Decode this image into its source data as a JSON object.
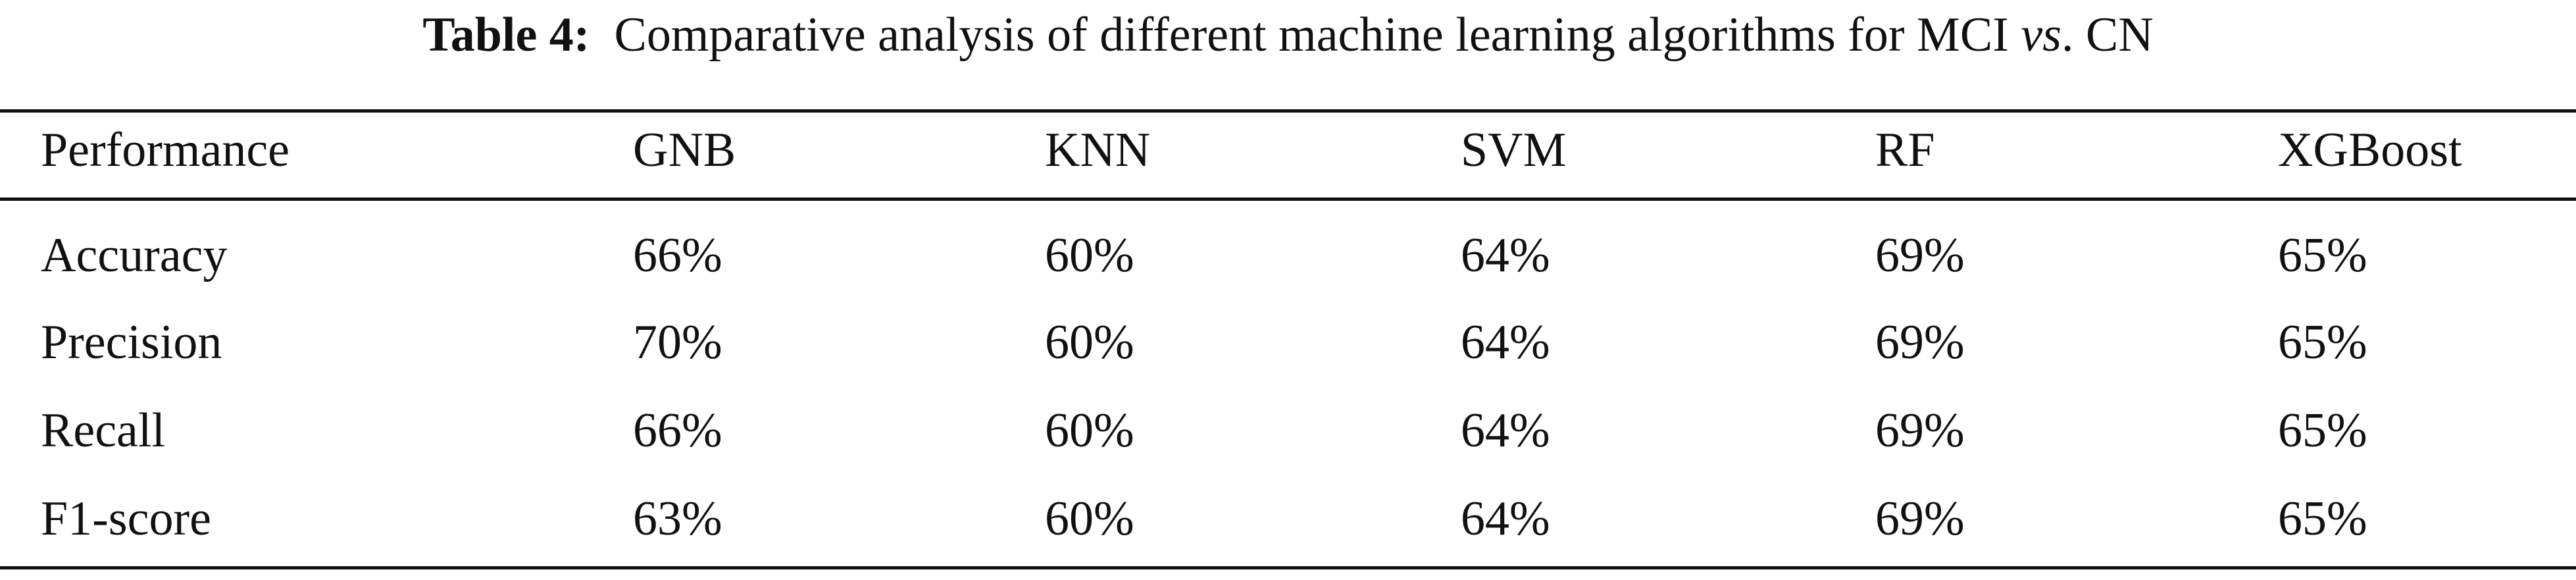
{
  "caption": {
    "label": "Table 4:",
    "text": "Comparative analysis of different machine learning algorithms for MCI",
    "italic": "vs",
    "text_after": ". CN"
  },
  "table": {
    "header": [
      "Performance",
      "GNB",
      "KNN",
      "SVM",
      "RF",
      "XGBoost"
    ],
    "rows": [
      [
        "Accuracy",
        "66%",
        "60%",
        "64%",
        "69%",
        "65%"
      ],
      [
        "Precision",
        "70%",
        "60%",
        "64%",
        "69%",
        "65%"
      ],
      [
        "Recall",
        "66%",
        "60%",
        "64%",
        "69%",
        "65%"
      ],
      [
        "F1-score",
        "63%",
        "60%",
        "64%",
        "69%",
        "65%"
      ]
    ]
  }
}
